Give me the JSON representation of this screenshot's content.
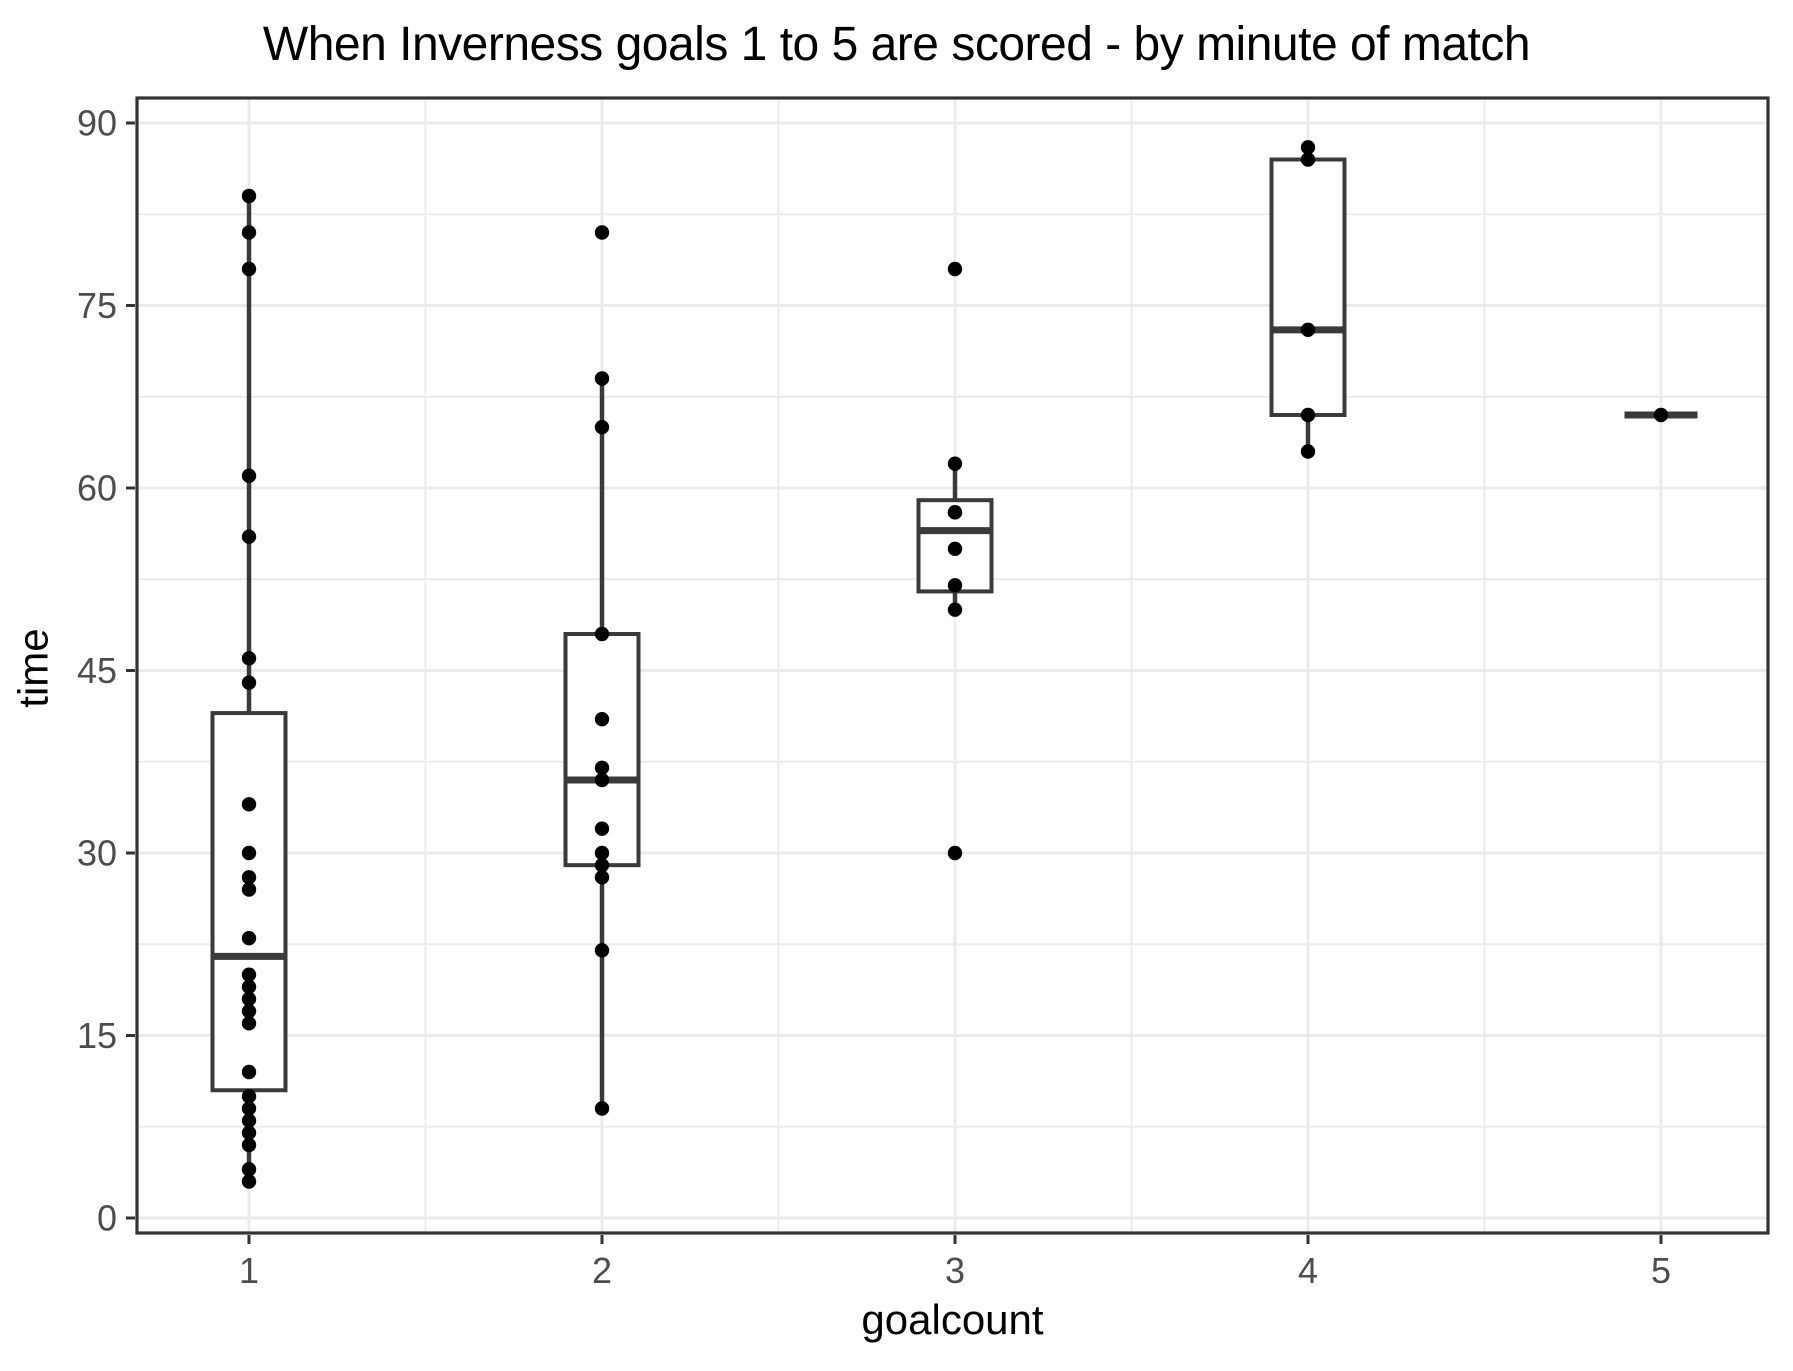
{
  "title": "When Inverness goals 1 to 5 are scored - by minute of match",
  "x_axis": {
    "label": "goalcount",
    "tick_labels": [
      "1",
      "2",
      "3",
      "4",
      "5"
    ]
  },
  "y_axis": {
    "label": "time",
    "tick_labels": [
      "0",
      "15",
      "30",
      "45",
      "60",
      "75",
      "90"
    ]
  },
  "colors": {
    "background": "#ffffff",
    "panel_background": "#ffffff",
    "panel_border": "#333333",
    "grid_major": "#ebebeb",
    "grid_minor": "#ebebeb",
    "box_stroke": "#3a3a3a",
    "median_stroke": "#3a3a3a",
    "point_fill": "#000000",
    "tick_mark": "#333333",
    "axis_tick_text": "#4d4d4d",
    "axis_title_text": "#000000",
    "title_text": "#000000"
  },
  "chart_data": {
    "type": "boxplot",
    "title": "When Inverness goals 1 to 5 are scored - by minute of match",
    "xlabel": "goalcount",
    "ylabel": "time",
    "categories": [
      "1",
      "2",
      "3",
      "4",
      "5"
    ],
    "y_major_ticks": [
      0,
      15,
      30,
      45,
      60,
      75,
      90
    ],
    "y_minor_ticks": [
      7.5,
      22.5,
      37.5,
      52.5,
      67.5,
      82.5
    ],
    "ylim": [
      -1.25,
      92.25
    ],
    "grid": true,
    "legend": false,
    "groups": [
      {
        "goalcount": 1,
        "points": [
          84,
          81,
          78,
          61,
          56,
          46,
          44,
          34,
          30,
          28,
          27,
          23,
          20,
          19,
          18,
          17,
          16,
          12,
          10,
          9,
          8,
          7,
          6,
          4,
          3
        ],
        "box": {
          "whisker_high": 84,
          "q3": 41.5,
          "median": 21.5,
          "q1": 10.5,
          "whisker_low": 3
        },
        "outliers": []
      },
      {
        "goalcount": 2,
        "points": [
          81,
          69,
          65,
          48,
          41,
          37,
          36,
          32,
          30,
          29,
          28,
          22,
          9
        ],
        "box": {
          "whisker_high": 69,
          "q3": 48,
          "median": 36,
          "q1": 29,
          "whisker_low": 9
        },
        "outliers": [
          81
        ]
      },
      {
        "goalcount": 3,
        "points": [
          78,
          62,
          58,
          58,
          55,
          52,
          50,
          30
        ],
        "box": {
          "whisker_high": 62,
          "q3": 59,
          "median": 56.5,
          "q1": 51.5,
          "whisker_low": 50
        },
        "outliers": [
          78,
          30
        ]
      },
      {
        "goalcount": 4,
        "points": [
          88,
          87,
          73,
          66,
          63
        ],
        "box": {
          "whisker_high": 88,
          "q3": 87,
          "median": 73,
          "q1": 66,
          "whisker_low": 63
        },
        "outliers": []
      },
      {
        "goalcount": 5,
        "points": [
          66
        ],
        "box": {
          "whisker_high": 66,
          "q3": 66,
          "median": 66,
          "q1": 66,
          "whisker_low": 66
        },
        "outliers": []
      }
    ]
  }
}
